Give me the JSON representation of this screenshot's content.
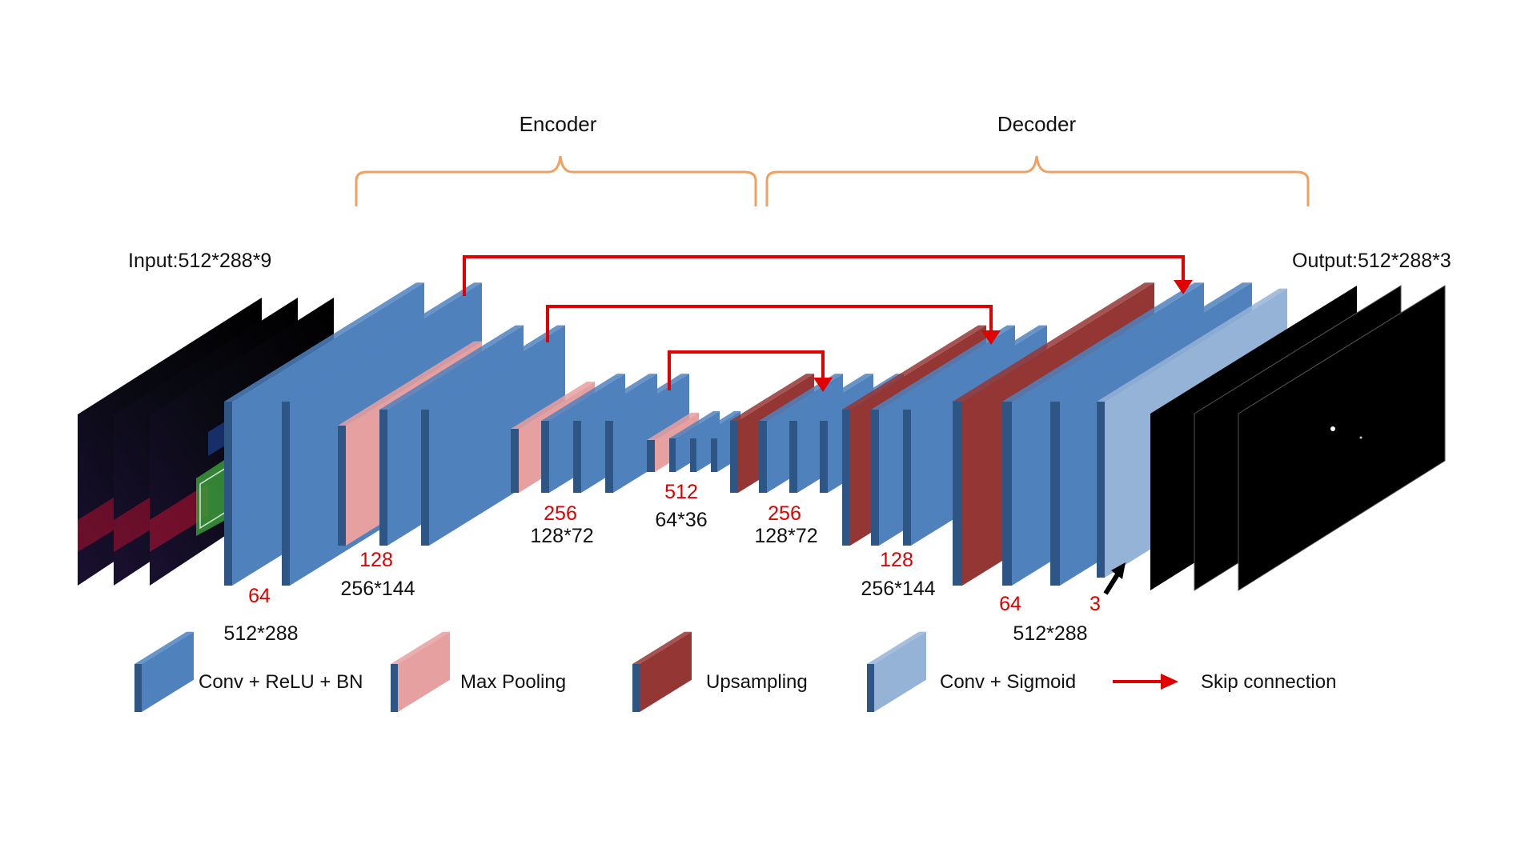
{
  "header": {
    "encoder": "Encoder",
    "decoder": "Decoder"
  },
  "io": {
    "input": "Input:512*288*9",
    "output": "Output:512*288*3"
  },
  "channels": {
    "c64_enc": "64",
    "c128_enc": "128",
    "c256_enc": "256",
    "c512": "512",
    "c256_dec": "256",
    "c128_dec": "128",
    "c64_dec": "64",
    "c3": "3"
  },
  "resolutions": {
    "r512_enc": "512*288",
    "r256_enc": "256*144",
    "r128_enc": "128*72",
    "r64": "64*36",
    "r128_dec": "128*72",
    "r256_dec": "256*144",
    "r512_dec": "512*288"
  },
  "legend": {
    "conv": "Conv + ReLU + BN",
    "pool": "Max Pooling",
    "up": "Upsampling",
    "sig": "Conv + Sigmoid",
    "skip": "Skip connection"
  },
  "colors": {
    "conv": "#4f81bd",
    "conv_side": "#2e5685",
    "pool": "#e6a0a0",
    "up": "#943634",
    "sig": "#95b3d7",
    "skip": "#e00000",
    "bracket": "#f0a060",
    "channel_text": "#e00000"
  }
}
